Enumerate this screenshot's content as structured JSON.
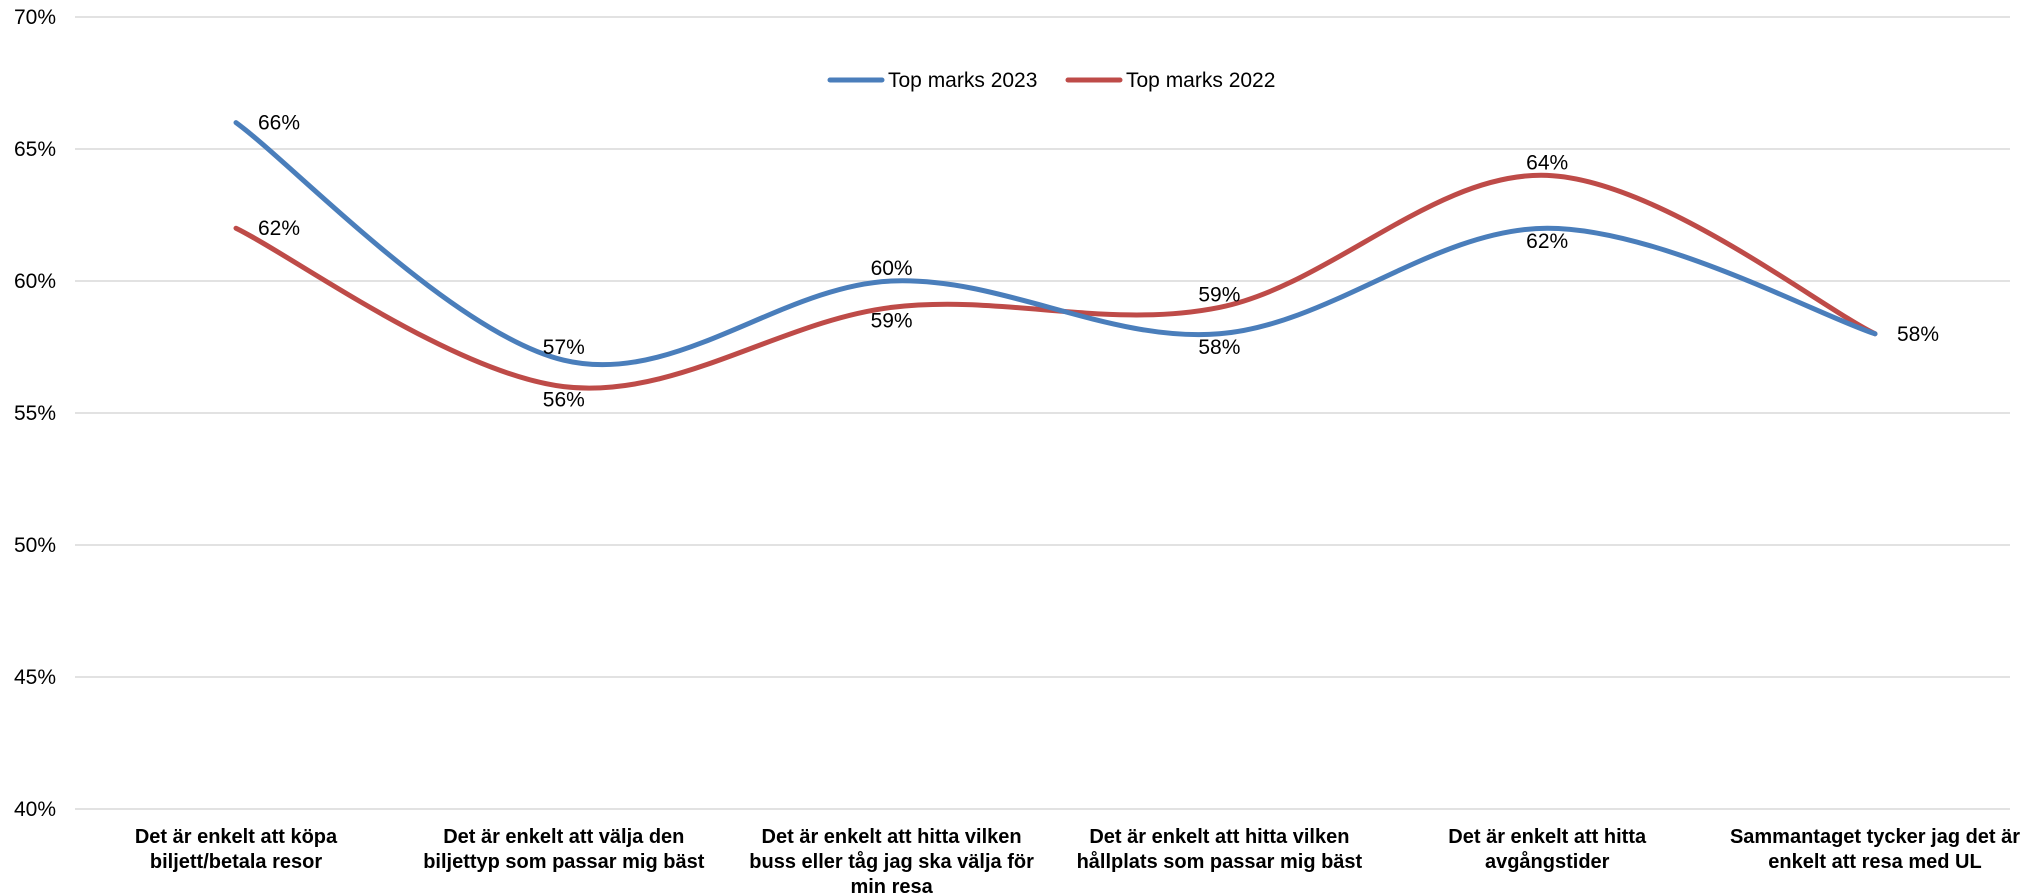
{
  "chart_data": {
    "type": "line",
    "smooth": true,
    "categories": [
      [
        "Det är enkelt att köpa",
        "biljett/betala resor"
      ],
      [
        "Det är enkelt att välja den",
        "biljettyp som passar mig bäst"
      ],
      [
        "Det är enkelt att hitta vilken",
        "buss eller tåg jag ska välja för",
        "min resa"
      ],
      [
        "Det är enkelt att hitta vilken",
        "hållplats som passar mig bäst"
      ],
      [
        "Det är enkelt att hitta",
        "avgångstider"
      ],
      [
        "Sammantaget tycker jag det är",
        "enkelt att resa med UL"
      ]
    ],
    "series": [
      {
        "name": "Top marks 2023",
        "color": "#4a7ebb",
        "values": [
          66,
          57,
          60,
          58,
          62,
          58
        ],
        "labels": [
          "66%",
          "57%",
          "60%",
          "58%",
          "62%",
          "58%"
        ]
      },
      {
        "name": "Top marks 2022",
        "color": "#be4b48",
        "values": [
          62,
          56,
          59,
          59,
          64,
          58
        ],
        "labels": [
          "62%",
          "56%",
          "59%",
          "59%",
          "64%",
          "58%"
        ]
      }
    ],
    "ylim": [
      40,
      70
    ],
    "yticks": [
      40,
      45,
      50,
      55,
      60,
      65,
      70
    ],
    "ytick_labels": [
      "40%",
      "45%",
      "50%",
      "55%",
      "60%",
      "65%",
      "70%"
    ],
    "grid": true,
    "legend": "top-center",
    "title": "",
    "xlabel": "",
    "ylabel": ""
  }
}
